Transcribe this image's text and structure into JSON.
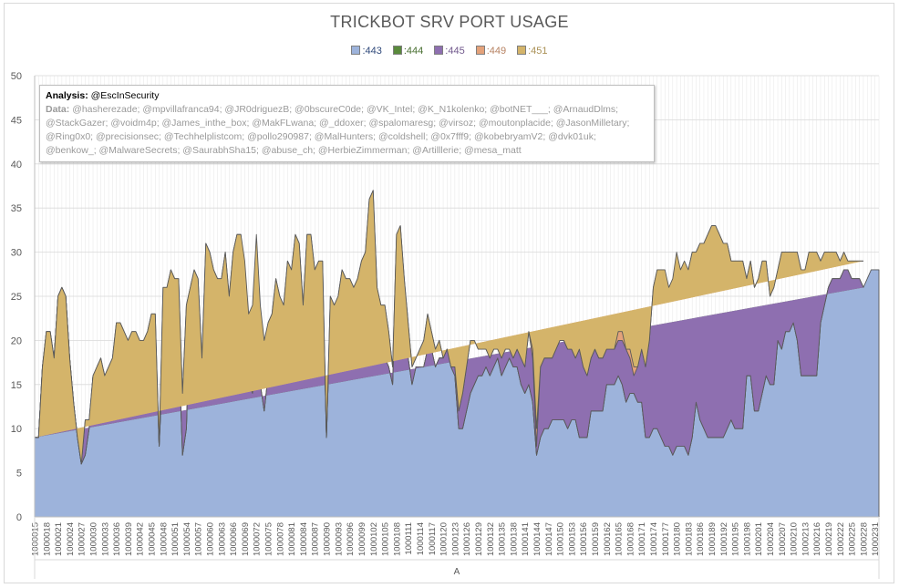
{
  "chart_data": {
    "type": "area",
    "stacked": true,
    "title": "TRICKBOT SRV PORT USAGE",
    "xlabel": "A",
    "ylabel": "",
    "ylim": [
      0,
      50
    ],
    "yticks": [
      0,
      5,
      10,
      15,
      20,
      25,
      30,
      35,
      40,
      45,
      50
    ],
    "grid": true,
    "legend_position": "top",
    "x_start": 1000015,
    "x_end": 1000228,
    "x_tick_step": 3,
    "colors": {
      ":443": "#9db3db",
      ":444": "#5a8a3c",
      ":445": "#8e6fb0",
      ":449": "#e4a27a",
      ":451": "#d4b46a"
    },
    "series": [
      {
        "name": ":443",
        "values": [
          9,
          9,
          17,
          20,
          19,
          18,
          25,
          26,
          25,
          18,
          13,
          9,
          6,
          7,
          10,
          16,
          15,
          15,
          12,
          15,
          15,
          20,
          19,
          19,
          16,
          18,
          18,
          17,
          18,
          19,
          19,
          21,
          8,
          18,
          23,
          25,
          22,
          20,
          7,
          10,
          23,
          25,
          24,
          14,
          20,
          23,
          24,
          24,
          23,
          21,
          19,
          23,
          24,
          25,
          24,
          15,
          14,
          19,
          15,
          12,
          16,
          15,
          19,
          17,
          16,
          19,
          20,
          23,
          23,
          21,
          28,
          30,
          26,
          26,
          27,
          9,
          23,
          23,
          24,
          24,
          24,
          24,
          19,
          20,
          22,
          23,
          33,
          34,
          25,
          21,
          18,
          17,
          15,
          27,
          28,
          26,
          18,
          15,
          17,
          17,
          17,
          19,
          19,
          17,
          18,
          18,
          19,
          17,
          16,
          10,
          10,
          12,
          14,
          15,
          16,
          16,
          17,
          16,
          17,
          18,
          16,
          17,
          18,
          17,
          17,
          15,
          14,
          15,
          13,
          7,
          9,
          10,
          10,
          11,
          11,
          11,
          11,
          10,
          11,
          11,
          9,
          9,
          9,
          12,
          12,
          12,
          12,
          15,
          15,
          15,
          16,
          15,
          13,
          14,
          14,
          13,
          13,
          9,
          9,
          10,
          10,
          9,
          8,
          8,
          7,
          8,
          8,
          8,
          7,
          9,
          13,
          11,
          10,
          9,
          9,
          9,
          9,
          9,
          10,
          11,
          10,
          10,
          10,
          16,
          16,
          12,
          12,
          14,
          16,
          15,
          15,
          20,
          19,
          21,
          21,
          22,
          20,
          16,
          16,
          16,
          16,
          16,
          22,
          24,
          26,
          27,
          27,
          27,
          28,
          28,
          27,
          27,
          27,
          26,
          27,
          28,
          28,
          28
        ]
      },
      {
        "name": ":444",
        "values": [
          0,
          0,
          0,
          0,
          0,
          0,
          0,
          0,
          0,
          0,
          0,
          0,
          0,
          0,
          0,
          0,
          0,
          0,
          0,
          0,
          0,
          0,
          0,
          0,
          0,
          0,
          0,
          0,
          0,
          0,
          0,
          0,
          0,
          0,
          0,
          0,
          0,
          0,
          0,
          0,
          0,
          0,
          0,
          0,
          0,
          0,
          0,
          0,
          0,
          0,
          0,
          0,
          0,
          0,
          0,
          0,
          0,
          0,
          0,
          0,
          0,
          0,
          0,
          0,
          0,
          0,
          0,
          0,
          0,
          0,
          0,
          0,
          0,
          0,
          0,
          0,
          0,
          0,
          0,
          0,
          0,
          0,
          0,
          0,
          0,
          0,
          0,
          0,
          0,
          0,
          0,
          0,
          0,
          0,
          0,
          0,
          0,
          0,
          0,
          0,
          0,
          0,
          0,
          0,
          0,
          0,
          0,
          0,
          0,
          0,
          0,
          0,
          0,
          0,
          0,
          0,
          0,
          0,
          0,
          0,
          0,
          0,
          0,
          0,
          0,
          0,
          0,
          0,
          0,
          0,
          0,
          0,
          0,
          0,
          0,
          0,
          0,
          0,
          0,
          0,
          0,
          0,
          0,
          0,
          0,
          0,
          0,
          0,
          0,
          0,
          0,
          0,
          0,
          0,
          0,
          0,
          0,
          0,
          0,
          0,
          0,
          0,
          0,
          0,
          0,
          0,
          0,
          0,
          0,
          0,
          0,
          0,
          0,
          0,
          0,
          0,
          0,
          0,
          0,
          0,
          0,
          0,
          0,
          0,
          0,
          0,
          0,
          0,
          0,
          0,
          0,
          0,
          0,
          0,
          0,
          0,
          0,
          0,
          0,
          0,
          0,
          0,
          0,
          0,
          0,
          0,
          0,
          0,
          0,
          0,
          0,
          0,
          0,
          0
        ]
      },
      {
        "name": ":445",
        "values": [
          0,
          0,
          0,
          1,
          2,
          0,
          0,
          0,
          0,
          0,
          0,
          0,
          0,
          0,
          0,
          0,
          0,
          0,
          0,
          0,
          0,
          0,
          0,
          0,
          0,
          0,
          0,
          0,
          0,
          0,
          0,
          0,
          0,
          0,
          0,
          0,
          0,
          0,
          0,
          0,
          0,
          0,
          0,
          0,
          0,
          0,
          0,
          0,
          0,
          0,
          0,
          0,
          0,
          0,
          0,
          0,
          0,
          0,
          0,
          0,
          0,
          0,
          0,
          0,
          0,
          0,
          0,
          0,
          0,
          0,
          0,
          0,
          0,
          0,
          0,
          0,
          0,
          0,
          0,
          0,
          0,
          0,
          0,
          0,
          0,
          0,
          0,
          0,
          0,
          0,
          0,
          0,
          0,
          0,
          0,
          0,
          0,
          0,
          0,
          0,
          0,
          0,
          0,
          0,
          0,
          0,
          0,
          0,
          0,
          0,
          0,
          0,
          0,
          0,
          0,
          0,
          0,
          0,
          0,
          0,
          0,
          0,
          0,
          0,
          0,
          0,
          0,
          0,
          0,
          0,
          0,
          0,
          0,
          0,
          0,
          0,
          0,
          0,
          0,
          0,
          0,
          0,
          0,
          0,
          0,
          0,
          0,
          0,
          0,
          0,
          0,
          0,
          0,
          0,
          0,
          0,
          0,
          0,
          0,
          0,
          0,
          0,
          0,
          0,
          0,
          0,
          0,
          0,
          0,
          0,
          0,
          0,
          0,
          0,
          0,
          0,
          0,
          0,
          0,
          0,
          0,
          0,
          0,
          0,
          0,
          0,
          0,
          0,
          0,
          0,
          0,
          0,
          0,
          0,
          0,
          0,
          0,
          0,
          0,
          0,
          0,
          0,
          0,
          0,
          0,
          0,
          0,
          0,
          0,
          0,
          0,
          0,
          0,
          0
        ]
      },
      {
        "name": ":449",
        "values": [
          0,
          0,
          0,
          0,
          0,
          0,
          0,
          0,
          0,
          0,
          0,
          0,
          0,
          4,
          1,
          0,
          2,
          3,
          4,
          2,
          3,
          2,
          3,
          2,
          4,
          3,
          3,
          3,
          2,
          2,
          4,
          2,
          0,
          8,
          3,
          3,
          5,
          7,
          7,
          14,
          3,
          3,
          3,
          4,
          11,
          7,
          4,
          3,
          4,
          9,
          6,
          7,
          8,
          7,
          1,
          7,
          8,
          10,
          8,
          7,
          6,
          8,
          8,
          8,
          8,
          10,
          8,
          9,
          8,
          3,
          4,
          2,
          2,
          3,
          2,
          0,
          2,
          1,
          1,
          4,
          3,
          3,
          7,
          7,
          7,
          7,
          3,
          3,
          1,
          3,
          6,
          4,
          2,
          5,
          5,
          1,
          4,
          2,
          1,
          2,
          3,
          4,
          2,
          2,
          2,
          0,
          0,
          0,
          1,
          2,
          4,
          5,
          6,
          5,
          3,
          3,
          2,
          2,
          2,
          1,
          2,
          2,
          1,
          1,
          2,
          3,
          3,
          6,
          5,
          1,
          8,
          8,
          8,
          7,
          8,
          9,
          9,
          9,
          8,
          7,
          10,
          8,
          7,
          6,
          7,
          6,
          6,
          4,
          4,
          4,
          4,
          5,
          6,
          4,
          2,
          4,
          6,
          8,
          11,
          16,
          18,
          18,
          19,
          17,
          19,
          20,
          19,
          20,
          21,
          21,
          17,
          20,
          21,
          23,
          24,
          24,
          23,
          22,
          21,
          18,
          19,
          19,
          19,
          11,
          13,
          14,
          15,
          15,
          13,
          10,
          11,
          8,
          11,
          9,
          9,
          8,
          10,
          12,
          12,
          14,
          14,
          14,
          7,
          6,
          4,
          3,
          3,
          2,
          2,
          1,
          2,
          2,
          2,
          3,
          2,
          2,
          2,
          2
        ]
      },
      {
        "name": ":451",
        "values": [
          0,
          0,
          0,
          0,
          0,
          0,
          0,
          0,
          0,
          0,
          0,
          0,
          0,
          0,
          0,
          0,
          0,
          0,
          0,
          0,
          0,
          0,
          0,
          0,
          0,
          0,
          0,
          0,
          0,
          0,
          0,
          0,
          0,
          0,
          0,
          0,
          0,
          0,
          0,
          0,
          0,
          0,
          0,
          0,
          0,
          0,
          0,
          0,
          0,
          0,
          0,
          0,
          0,
          0,
          4,
          1,
          2,
          3,
          1,
          1,
          0,
          0,
          0,
          0,
          0,
          0,
          0,
          0,
          0,
          0,
          0,
          0,
          0,
          0,
          0,
          0,
          0,
          0,
          0,
          0,
          0,
          0,
          0,
          0,
          0,
          0,
          0,
          0,
          0,
          0,
          0,
          0,
          0,
          0,
          0,
          0,
          0,
          0,
          0,
          0,
          0,
          0,
          0,
          0,
          0,
          0,
          0,
          0,
          0,
          0,
          0,
          0,
          0,
          0,
          0,
          0,
          0,
          0,
          0,
          0,
          0,
          0,
          0,
          0,
          0,
          0,
          0,
          0,
          1,
          2,
          0,
          0,
          0,
          0,
          0,
          0,
          0,
          0,
          0,
          0,
          0,
          0,
          0,
          0,
          0,
          0,
          0,
          0,
          0,
          0,
          1,
          1,
          0,
          1,
          1,
          0,
          0,
          0,
          0,
          0,
          0,
          1,
          1,
          1,
          1,
          2,
          1,
          1,
          0,
          0,
          0,
          0,
          0,
          0,
          0,
          0,
          0,
          0,
          0,
          0,
          0,
          0,
          0,
          0,
          0,
          0,
          0,
          0,
          0,
          0,
          0,
          0,
          0,
          0,
          0,
          0,
          0,
          0,
          0,
          0,
          0,
          0,
          0,
          0,
          0,
          0,
          0,
          0,
          0,
          0,
          0,
          0,
          0,
          0
        ]
      }
    ]
  },
  "annotation": {
    "label": "Analysis:",
    "author": "@EscInSecurity",
    "data_label": "Data:",
    "data_text": "@hasherezade; @mpvillafranca94; @JR0driguezB; @0bscureC0de; @VK_Intel; @K_N1kolenko; @botNET___; @ArnaudDlms; @StackGazer; @voidm4p; @James_inthe_box; @MakFLwana; @_ddoxer; @spalomaresg; @virsoz; @moutonplacide; @JasonMilletary; @Ring0x0; @precisionsec; @Techhelplistcom; @pollo290987; @MalHunters; @coldshell; @0x7fff9; @kobebryamV2; @dvk01uk; @benkow_; @MalwareSecrets; @SaurabhSha15; @abuse_ch; @HerbieZimmerman; @Artilllerie; @mesa_matt"
  }
}
